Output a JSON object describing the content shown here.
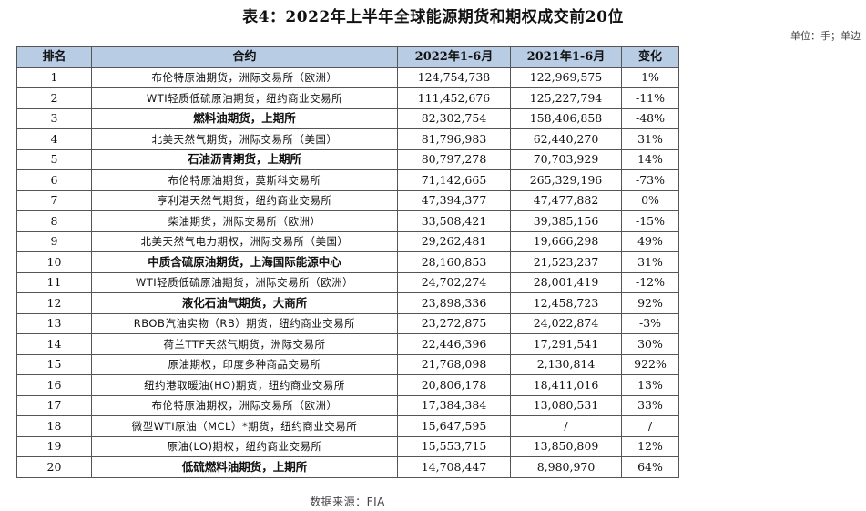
{
  "title": "表4：2022年上半年全球能源期货和期权成交前20位",
  "unit": "单位：手；单边",
  "source": "数据来源：FIA",
  "headers": [
    "排名",
    "合约",
    "2022年1-6月",
    "2021年1-6月",
    "变化"
  ],
  "rows": [
    {
      "rank": "1",
      "contract": "布伦特原油期货，洲际交易所（欧洲）",
      "bold": false,
      "v2022": "124,754,738",
      "v2021": "122,969,575",
      "change": "1%"
    },
    {
      "rank": "2",
      "contract": "WTI轻质低硫原油期货，纽约商业交易所",
      "bold": false,
      "v2022": "111,452,676",
      "v2021": "125,227,794",
      "change": "-11%"
    },
    {
      "rank": "3",
      "contract": "燃料油期货，上期所",
      "bold": true,
      "v2022": "82,302,754",
      "v2021": "158,406,858",
      "change": "-48%"
    },
    {
      "rank": "4",
      "contract": "北美天然气期货，洲际交易所（美国）",
      "bold": false,
      "v2022": "81,796,983",
      "v2021": "62,440,270",
      "change": "31%"
    },
    {
      "rank": "5",
      "contract": "石油沥青期货，上期所",
      "bold": true,
      "v2022": "80,797,278",
      "v2021": "70,703,929",
      "change": "14%"
    },
    {
      "rank": "6",
      "contract": "布伦特原油期货，莫斯科交易所",
      "bold": false,
      "v2022": "71,142,665",
      "v2021": "265,329,196",
      "change": "-73%"
    },
    {
      "rank": "7",
      "contract": "亨利港天然气期货，纽约商业交易所",
      "bold": false,
      "v2022": "47,394,377",
      "v2021": "47,477,882",
      "change": "0%"
    },
    {
      "rank": "8",
      "contract": "柴油期货，洲际交易所（欧洲）",
      "bold": false,
      "v2022": "33,508,421",
      "v2021": "39,385,156",
      "change": "-15%"
    },
    {
      "rank": "9",
      "contract": "北美天然气电力期权，洲际交易所（美国）",
      "bold": false,
      "v2022": "29,262,481",
      "v2021": "19,666,298",
      "change": "49%"
    },
    {
      "rank": "10",
      "contract": "中质含硫原油期货，上海国际能源中心",
      "bold": true,
      "v2022": "28,160,853",
      "v2021": "21,523,237",
      "change": "31%"
    },
    {
      "rank": "11",
      "contract": "WTI轻质低硫原油期货，洲际交易所（欧洲）",
      "bold": false,
      "v2022": "24,702,274",
      "v2021": "28,001,419",
      "change": "-12%"
    },
    {
      "rank": "12",
      "contract": "液化石油气期货，大商所",
      "bold": true,
      "v2022": "23,898,336",
      "v2021": "12,458,723",
      "change": "92%"
    },
    {
      "rank": "13",
      "contract": "RBOB汽油实物（RB）期货，纽约商业交易所",
      "bold": false,
      "v2022": "23,272,875",
      "v2021": "24,022,874",
      "change": "-3%"
    },
    {
      "rank": "14",
      "contract": "荷兰TTF天然气期货，洲际交易所",
      "bold": false,
      "v2022": "22,446,396",
      "v2021": "17,291,541",
      "change": "30%"
    },
    {
      "rank": "15",
      "contract": "原油期权，印度多种商品交易所",
      "bold": false,
      "v2022": "21,768,098",
      "v2021": "2,130,814",
      "change": "922%"
    },
    {
      "rank": "16",
      "contract": "纽约港取暖油(HO)期货，纽约商业交易所",
      "bold": false,
      "v2022": "20,806,178",
      "v2021": "18,411,016",
      "change": "13%"
    },
    {
      "rank": "17",
      "contract": "布伦特原油期权，洲际交易所（欧洲）",
      "bold": false,
      "v2022": "17,384,384",
      "v2021": "13,080,531",
      "change": "33%"
    },
    {
      "rank": "18",
      "contract": "微型WTI原油（MCL）*期货，纽约商业交易所",
      "bold": false,
      "v2022": "15,647,595",
      "v2021": "/",
      "change": "/"
    },
    {
      "rank": "19",
      "contract": "原油(LO)期权，纽约商业交易所",
      "bold": false,
      "v2022": "15,553,715",
      "v2021": "13,850,809",
      "change": "12%"
    },
    {
      "rank": "20",
      "contract": "低硫燃料油期货，上期所",
      "bold": true,
      "v2022": "14,708,447",
      "v2021": "8,980,970",
      "change": "64%"
    }
  ]
}
